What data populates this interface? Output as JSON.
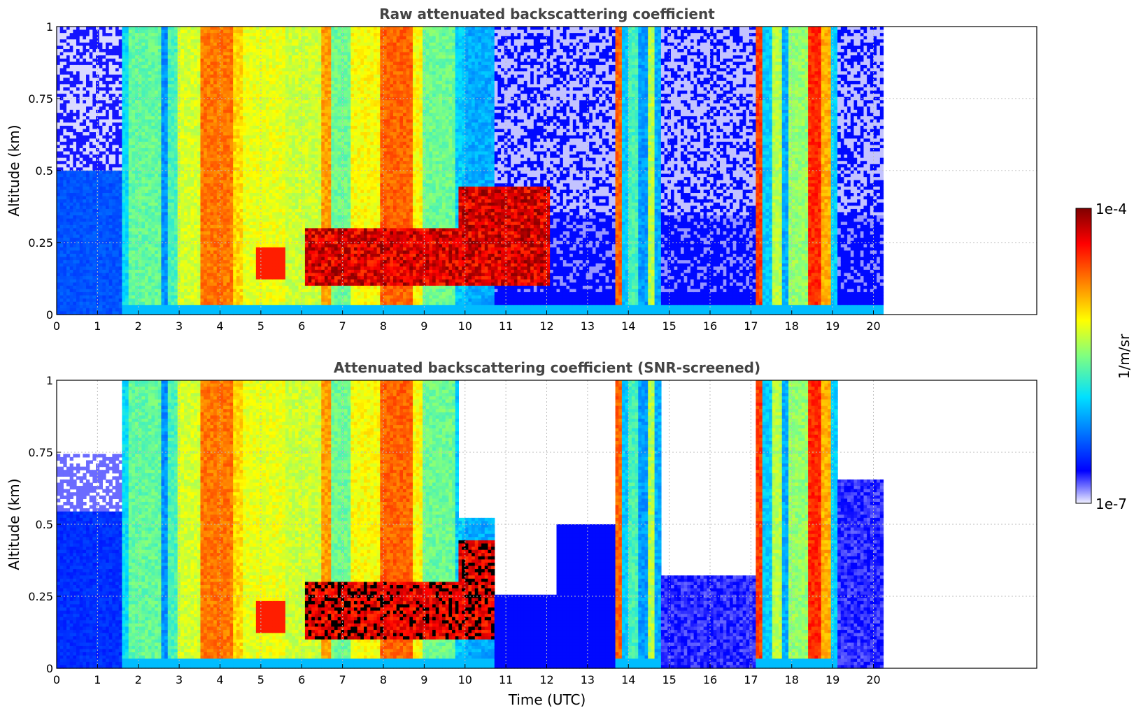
{
  "chart_data": [
    {
      "type": "heatmap",
      "title": "Raw attenuated backscattering coefficient",
      "xlabel": "",
      "ylabel": "Altitude (km)",
      "xlim": [
        0,
        24
      ],
      "ylim": [
        0,
        1
      ],
      "data_extent_hours": [
        0,
        20.25
      ],
      "x_ticks": [
        0,
        1,
        2,
        3,
        4,
        5,
        6,
        7,
        8,
        9,
        10,
        11,
        12,
        13,
        14,
        15,
        16,
        17,
        18,
        19,
        20
      ],
      "x_tick_labels": [
        "0",
        "1",
        "2",
        "3",
        "4",
        "5",
        "6",
        "7",
        "8",
        "9",
        "10",
        "11",
        "12",
        "13",
        "14",
        "15",
        "16",
        "17",
        "18",
        "19",
        "20"
      ],
      "y_ticks": [
        0,
        0.25,
        0.5,
        0.75,
        1
      ],
      "y_tick_labels": [
        "0",
        "0.25",
        "0.5",
        "0.75",
        "1"
      ],
      "grid": true,
      "screened": false,
      "colorbar_label": "1/m/sr",
      "colorbar_range": [
        "1e-7",
        "1e-4"
      ]
    },
    {
      "type": "heatmap",
      "title": "Attenuated backscattering coefficient (SNR-screened)",
      "xlabel": "Time (UTC)",
      "ylabel": "Altitude (km)",
      "xlim": [
        0,
        24
      ],
      "ylim": [
        0,
        1
      ],
      "data_extent_hours": [
        0,
        20.25
      ],
      "x_ticks": [
        0,
        1,
        2,
        3,
        4,
        5,
        6,
        7,
        8,
        9,
        10,
        11,
        12,
        13,
        14,
        15,
        16,
        17,
        18,
        19,
        20
      ],
      "x_tick_labels": [
        "0",
        "1",
        "2",
        "3",
        "4",
        "5",
        "6",
        "7",
        "8",
        "9",
        "10",
        "11",
        "12",
        "13",
        "14",
        "15",
        "16",
        "17",
        "18",
        "19",
        "20"
      ],
      "y_ticks": [
        0,
        0.25,
        0.5,
        0.75,
        1
      ],
      "y_tick_labels": [
        "0",
        "0.25",
        "0.5",
        "0.75",
        "1"
      ],
      "grid": true,
      "screened": true,
      "colorbar_label": "1/m/sr",
      "colorbar_range": [
        "1e-7",
        "1e-4"
      ]
    }
  ],
  "colorbar": {
    "label": "1/m/sr",
    "max_label": "1e-4",
    "min_label": "1e-7",
    "colormap": "jet"
  }
}
